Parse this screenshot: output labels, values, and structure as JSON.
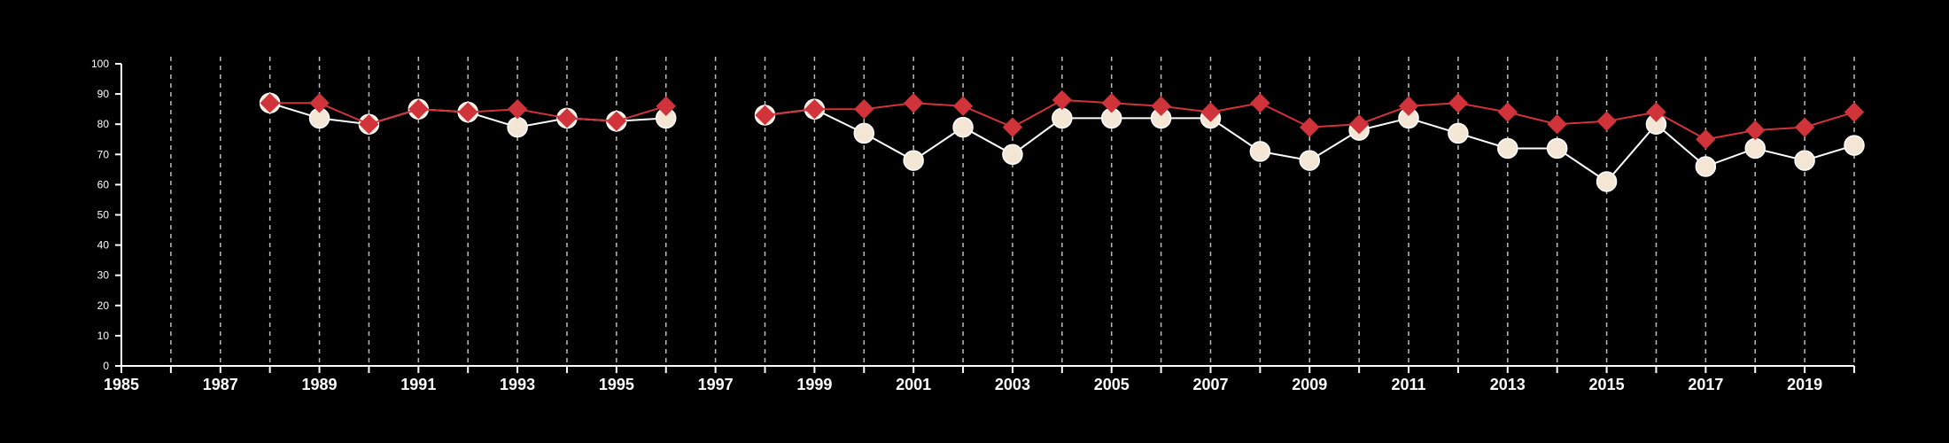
{
  "chart_data": {
    "type": "line",
    "title": "",
    "xlabel": "",
    "ylabel": "",
    "xlim": [
      1985,
      2020
    ],
    "ylim": [
      0,
      100
    ],
    "yticks": [
      0,
      10,
      20,
      30,
      40,
      50,
      60,
      70,
      80,
      90,
      100
    ],
    "xticks": [
      1985,
      1987,
      1989,
      1991,
      1993,
      1995,
      1997,
      1999,
      2001,
      2003,
      2005,
      2007,
      2009,
      2011,
      2013,
      2015,
      2017,
      2019
    ],
    "grid": "vertical dashed lines at every year",
    "legend": "none",
    "series": [
      {
        "marker": "circle",
        "color": "#ffffff",
        "marker_color": "#f4e6d4",
        "points": [
          {
            "x": 1988,
            "y": 87
          },
          {
            "x": 1989,
            "y": 82
          },
          {
            "x": 1990,
            "y": 80
          },
          {
            "x": 1991,
            "y": 85
          },
          {
            "x": 1992,
            "y": 84
          },
          {
            "x": 1993,
            "y": 79
          },
          {
            "x": 1994,
            "y": 82
          },
          {
            "x": 1995,
            "y": 81
          },
          {
            "x": 1996,
            "y": 82
          },
          {
            "x": 1998,
            "y": 83
          },
          {
            "x": 1999,
            "y": 85
          },
          {
            "x": 2000,
            "y": 77
          },
          {
            "x": 2001,
            "y": 68
          },
          {
            "x": 2002,
            "y": 79
          },
          {
            "x": 2003,
            "y": 70
          },
          {
            "x": 2004,
            "y": 82
          },
          {
            "x": 2005,
            "y": 82
          },
          {
            "x": 2006,
            "y": 82
          },
          {
            "x": 2007,
            "y": 82
          },
          {
            "x": 2008,
            "y": 71
          },
          {
            "x": 2009,
            "y": 68
          },
          {
            "x": 2010,
            "y": 78
          },
          {
            "x": 2011,
            "y": 82
          },
          {
            "x": 2012,
            "y": 77
          },
          {
            "x": 2013,
            "y": 72
          },
          {
            "x": 2014,
            "y": 72
          },
          {
            "x": 2015,
            "y": 61
          },
          {
            "x": 2016,
            "y": 80
          },
          {
            "x": 2017,
            "y": 66
          },
          {
            "x": 2018,
            "y": 72
          },
          {
            "x": 2019,
            "y": 68
          },
          {
            "x": 2020,
            "y": 73
          }
        ]
      },
      {
        "marker": "diamond",
        "color": "#d0333a",
        "marker_color": "#d0333a",
        "points": [
          {
            "x": 1988,
            "y": 87
          },
          {
            "x": 1989,
            "y": 87
          },
          {
            "x": 1990,
            "y": 80
          },
          {
            "x": 1991,
            "y": 85
          },
          {
            "x": 1992,
            "y": 84
          },
          {
            "x": 1993,
            "y": 85
          },
          {
            "x": 1994,
            "y": 82
          },
          {
            "x": 1995,
            "y": 81
          },
          {
            "x": 1996,
            "y": 86
          },
          {
            "x": 1998,
            "y": 83
          },
          {
            "x": 1999,
            "y": 85
          },
          {
            "x": 2000,
            "y": 85
          },
          {
            "x": 2001,
            "y": 87
          },
          {
            "x": 2002,
            "y": 86
          },
          {
            "x": 2003,
            "y": 79
          },
          {
            "x": 2004,
            "y": 88
          },
          {
            "x": 2005,
            "y": 87
          },
          {
            "x": 2006,
            "y": 86
          },
          {
            "x": 2007,
            "y": 84
          },
          {
            "x": 2008,
            "y": 87
          },
          {
            "x": 2009,
            "y": 79
          },
          {
            "x": 2010,
            "y": 80
          },
          {
            "x": 2011,
            "y": 86
          },
          {
            "x": 2012,
            "y": 87
          },
          {
            "x": 2013,
            "y": 84
          },
          {
            "x": 2014,
            "y": 80
          },
          {
            "x": 2015,
            "y": 81
          },
          {
            "x": 2016,
            "y": 84
          },
          {
            "x": 2017,
            "y": 75
          },
          {
            "x": 2018,
            "y": 78
          },
          {
            "x": 2019,
            "y": 79
          },
          {
            "x": 2020,
            "y": 84
          }
        ]
      }
    ]
  }
}
